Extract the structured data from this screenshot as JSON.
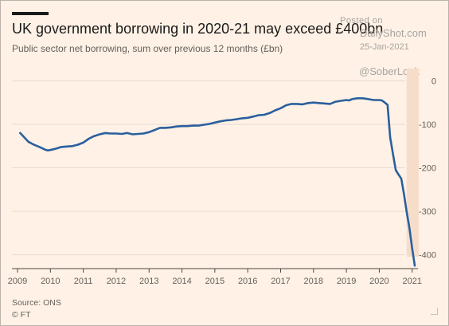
{
  "header": {
    "title": "UK government borrowing in 2020-21 may exceed £400bn",
    "subtitle": "Public sector net borrowing, sum over previous 12 months (£bn)"
  },
  "watermark": {
    "posted": "Posted on",
    "site": "DailyShot.com",
    "date": "25-Jan-2021",
    "handle": "@SoberLook"
  },
  "footer": {
    "source": "Source: ONS",
    "publisher": "© FT"
  },
  "colors": {
    "background": "#fff1e5",
    "line": "#2a5f9e",
    "gridline": "#e6dcd2",
    "highlight": "#f6ddca",
    "axis_text": "#66605c"
  },
  "chart_data": {
    "type": "line",
    "title": "",
    "xlabel": "",
    "ylabel": "",
    "xlim": [
      2009.0,
      2021.2
    ],
    "ylim": [
      -430,
      10
    ],
    "x_ticks": [
      2009,
      2010,
      2011,
      2012,
      2013,
      2014,
      2015,
      2016,
      2017,
      2018,
      2019,
      2020,
      2021
    ],
    "x_tick_labels": [
      "2009",
      "2010",
      "2011",
      "2012",
      "2013",
      "2014",
      "2015",
      "2016",
      "2017",
      "2018",
      "2019",
      "2020",
      "2021"
    ],
    "y_ticks": [
      0,
      -100,
      -200,
      -300,
      -400
    ],
    "y_tick_labels": [
      "0",
      "-100",
      "-200",
      "-300",
      "-400"
    ],
    "grid": true,
    "highlight_range": [
      2020.83,
      2021.2
    ],
    "series": [
      {
        "x": [
          2009.08,
          2009.17,
          2009.33,
          2009.5,
          2009.67,
          2009.83,
          2009.92,
          2010.0,
          2010.17,
          2010.33,
          2010.5,
          2010.67,
          2010.83,
          2011.0,
          2011.17,
          2011.33,
          2011.5,
          2011.67,
          2011.83,
          2012.0,
          2012.17,
          2012.33,
          2012.5,
          2012.67,
          2012.83,
          2013.0,
          2013.17,
          2013.33,
          2013.5,
          2013.67,
          2013.83,
          2014.0,
          2014.17,
          2014.33,
          2014.5,
          2014.67,
          2014.83,
          2015.0,
          2015.17,
          2015.33,
          2015.5,
          2015.67,
          2015.83,
          2016.0,
          2016.17,
          2016.33,
          2016.5,
          2016.67,
          2016.83,
          2017.0,
          2017.17,
          2017.33,
          2017.5,
          2017.67,
          2017.83,
          2018.0,
          2018.17,
          2018.33,
          2018.5,
          2018.67,
          2018.83,
          2019.0,
          2019.08,
          2019.17,
          2019.33,
          2019.5,
          2019.67,
          2019.83,
          2020.0,
          2020.08,
          2020.17,
          2020.25,
          2020.33,
          2020.42,
          2020.5,
          2020.58,
          2020.67,
          2020.75,
          2020.83,
          2020.92,
          2021.0,
          2021.08
        ],
        "y": [
          -120,
          -127,
          -140,
          -147,
          -152,
          -158,
          -160,
          -159,
          -156,
          -152,
          -151,
          -150,
          -147,
          -142,
          -133,
          -127,
          -123,
          -120,
          -121,
          -121,
          -122,
          -120,
          -123,
          -122,
          -121,
          -118,
          -113,
          -108,
          -108,
          -107,
          -105,
          -104,
          -104,
          -103,
          -103,
          -101,
          -99,
          -96,
          -93,
          -91,
          -90,
          -88,
          -86,
          -85,
          -82,
          -79,
          -78,
          -74,
          -68,
          -63,
          -56,
          -53,
          -53,
          -54,
          -51,
          -50,
          -51,
          -52,
          -53,
          -48,
          -46,
          -44,
          -45,
          -42,
          -40,
          -40,
          -42,
          -44,
          -44,
          -45,
          -50,
          -55,
          -130,
          -170,
          -205,
          -215,
          -225,
          -260,
          -300,
          -340,
          -385,
          -425
        ]
      }
    ]
  }
}
